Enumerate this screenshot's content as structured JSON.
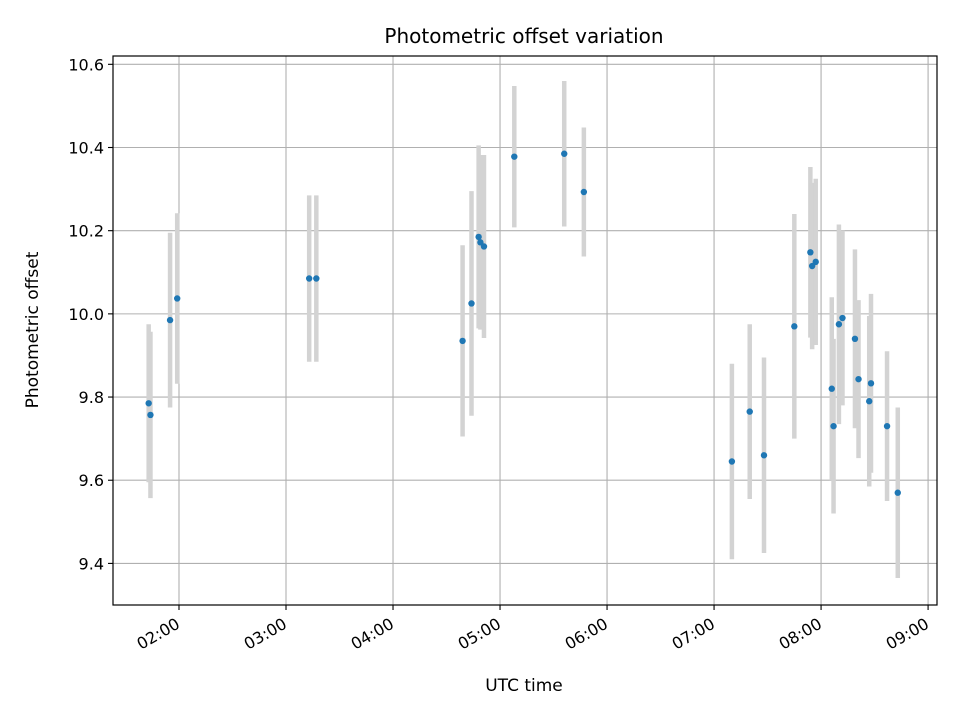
{
  "chart_data": {
    "type": "scatter",
    "title": "Photometric offset variation",
    "xlabel": "UTC time",
    "ylabel": "Photometric offset",
    "xlim": [
      "01:23",
      "09:05"
    ],
    "ylim": [
      9.3,
      10.62
    ],
    "x_ticks": [
      "02:00",
      "03:00",
      "04:00",
      "05:00",
      "06:00",
      "07:00",
      "08:00",
      "09:00"
    ],
    "y_ticks": [
      "9.4",
      "9.6",
      "9.8",
      "10.0",
      "10.2",
      "10.4",
      "10.6"
    ],
    "grid": true,
    "point_color": "#1f77b4",
    "errorbar_color": "#d3d3d3",
    "points": [
      {
        "x": "01:43",
        "y": 9.785,
        "err": 0.19
      },
      {
        "x": "01:44",
        "y": 9.757,
        "err": 0.2
      },
      {
        "x": "01:55",
        "y": 9.985,
        "err": 0.21
      },
      {
        "x": "01:59",
        "y": 10.037,
        "err": 0.205
      },
      {
        "x": "03:13",
        "y": 10.085,
        "err": 0.2
      },
      {
        "x": "03:17",
        "y": 10.085,
        "err": 0.2
      },
      {
        "x": "04:39",
        "y": 9.935,
        "err": 0.23
      },
      {
        "x": "04:44",
        "y": 10.025,
        "err": 0.27
      },
      {
        "x": "04:48",
        "y": 10.185,
        "err": 0.22
      },
      {
        "x": "04:49",
        "y": 10.172,
        "err": 0.21
      },
      {
        "x": "04:51",
        "y": 10.162,
        "err": 0.22
      },
      {
        "x": "05:08",
        "y": 10.378,
        "err": 0.17
      },
      {
        "x": "05:36",
        "y": 10.385,
        "err": 0.175
      },
      {
        "x": "05:47",
        "y": 10.293,
        "err": 0.155
      },
      {
        "x": "07:10",
        "y": 9.645,
        "err": 0.235
      },
      {
        "x": "07:20",
        "y": 9.765,
        "err": 0.21
      },
      {
        "x": "07:28",
        "y": 9.66,
        "err": 0.235
      },
      {
        "x": "07:45",
        "y": 9.97,
        "err": 0.27
      },
      {
        "x": "07:54",
        "y": 10.148,
        "err": 0.205
      },
      {
        "x": "07:55",
        "y": 10.115,
        "err": 0.2
      },
      {
        "x": "07:57",
        "y": 10.125,
        "err": 0.2
      },
      {
        "x": "08:06",
        "y": 9.82,
        "err": 0.22
      },
      {
        "x": "08:07",
        "y": 9.73,
        "err": 0.21
      },
      {
        "x": "08:10",
        "y": 9.975,
        "err": 0.24
      },
      {
        "x": "08:12",
        "y": 9.99,
        "err": 0.21
      },
      {
        "x": "08:19",
        "y": 9.94,
        "err": 0.215
      },
      {
        "x": "08:21",
        "y": 9.843,
        "err": 0.19
      },
      {
        "x": "08:27",
        "y": 9.79,
        "err": 0.205
      },
      {
        "x": "08:28",
        "y": 9.833,
        "err": 0.215
      },
      {
        "x": "08:37",
        "y": 9.73,
        "err": 0.18
      },
      {
        "x": "08:43",
        "y": 9.57,
        "err": 0.205
      }
    ]
  }
}
